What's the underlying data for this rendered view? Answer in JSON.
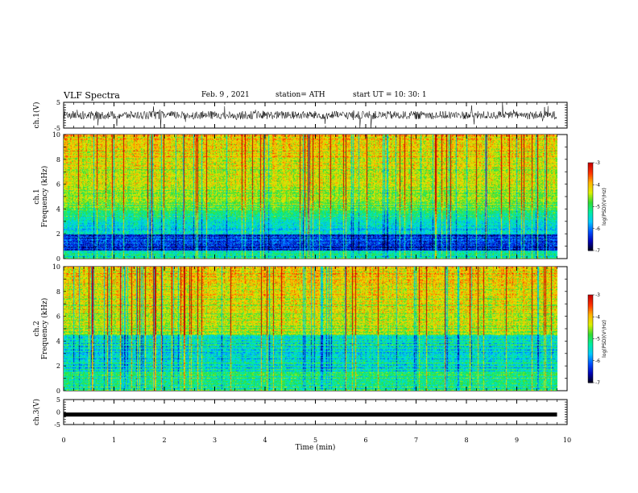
{
  "header": {
    "title": "VLF Spectra",
    "date": "Feb. 9 , 2021",
    "station": "station= ATH",
    "start": "start UT = 10: 30: 1"
  },
  "colors": {
    "colormap": [
      "#00000a",
      "#0000b4",
      "#0050ff",
      "#00c8ff",
      "#00f0a0",
      "#32dc32",
      "#dcf000",
      "#ffb400",
      "#ff3200",
      "#c80000",
      "#ffffff"
    ]
  },
  "chart_data": [
    {
      "type": "line",
      "panel": "ch1-waveform",
      "ylabel": "ch.1(V)",
      "ylim": [
        -5,
        5
      ],
      "yticks": [
        5,
        -5
      ],
      "xlim": [
        0,
        10
      ],
      "series": [
        {
          "x": [
            0,
            9.8
          ],
          "y": [
            0,
            0
          ]
        }
      ]
    },
    {
      "type": "heatmap",
      "panel": "ch1-spectrogram",
      "ylabel": "ch.1\nFrequency (kHz)",
      "ylim": [
        0,
        10
      ],
      "yticks": [
        0,
        2,
        4,
        6,
        8,
        10
      ],
      "xlim": [
        0,
        10
      ],
      "colorbar": {
        "label": "log(PSD)(V²/Hz)",
        "range": [
          -7,
          -3
        ],
        "ticks": [
          -3,
          -4,
          -5,
          -6,
          -7
        ]
      }
    },
    {
      "type": "heatmap",
      "panel": "ch2-spectrogram",
      "ylabel": "ch.2\nFrequency (kHz)",
      "ylim": [
        0,
        10
      ],
      "yticks": [
        0,
        2,
        4,
        6,
        8,
        10
      ],
      "xlim": [
        0,
        10
      ],
      "colorbar": {
        "label": "log(PSD)(V²/Hz)",
        "range": [
          -7,
          -3
        ],
        "ticks": [
          -3,
          -4,
          -5,
          -6,
          -7
        ]
      }
    },
    {
      "type": "line",
      "panel": "ch3-waveform",
      "ylabel": "ch.3(V)",
      "ylim": [
        -5,
        5
      ],
      "yticks": [
        5,
        0,
        -5
      ],
      "xlim": [
        0,
        10
      ],
      "xlabel": "Time (min)",
      "xticks": [
        0,
        1,
        2,
        3,
        4,
        5,
        6,
        7,
        8,
        9,
        10
      ],
      "series": [
        {
          "x": [
            0,
            9.8
          ],
          "y": [
            -1,
            -1
          ]
        }
      ]
    }
  ]
}
